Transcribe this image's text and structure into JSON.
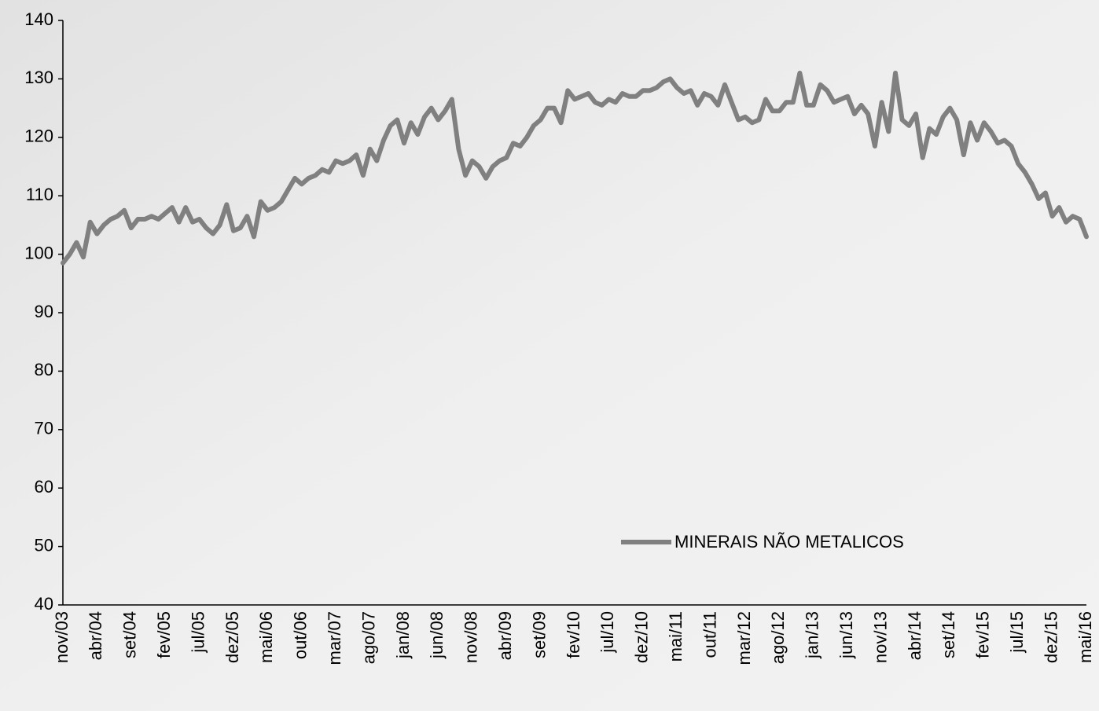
{
  "chart_data": {
    "type": "line",
    "categories": [
      "nov/03",
      null,
      null,
      null,
      null,
      "abr/04",
      null,
      null,
      null,
      null,
      "set/04",
      null,
      null,
      null,
      null,
      "fev/05",
      null,
      null,
      null,
      null,
      "jul/05",
      null,
      null,
      null,
      null,
      "dez/05",
      null,
      null,
      null,
      null,
      "mai/06",
      null,
      null,
      null,
      null,
      "out/06",
      null,
      null,
      null,
      null,
      "mar/07",
      null,
      null,
      null,
      null,
      "ago/07",
      null,
      null,
      null,
      null,
      "jan/08",
      null,
      null,
      null,
      null,
      "jun/08",
      null,
      null,
      null,
      null,
      "nov/08",
      null,
      null,
      null,
      null,
      "abr/09",
      null,
      null,
      null,
      null,
      "set/09",
      null,
      null,
      null,
      null,
      "fev/10",
      null,
      null,
      null,
      null,
      "jul/10",
      null,
      null,
      null,
      null,
      "dez/10",
      null,
      null,
      null,
      null,
      "mai/11",
      null,
      null,
      null,
      null,
      "out/11",
      null,
      null,
      null,
      null,
      "mar/12",
      null,
      null,
      null,
      null,
      "ago/12",
      null,
      null,
      null,
      null,
      "jan/13",
      null,
      null,
      null,
      null,
      "jun/13",
      null,
      null,
      null,
      null,
      "nov/13",
      null,
      null,
      null,
      null,
      "abr/14",
      null,
      null,
      null,
      null,
      "set/14",
      null,
      null,
      null,
      null,
      "fev/15",
      null,
      null,
      null,
      null,
      "jul/15",
      null,
      null,
      null,
      null,
      "dez/15",
      null,
      null,
      null,
      null,
      "mai/16"
    ],
    "series": [
      {
        "name": "MINERAIS NÃO METALICOS",
        "color": "#808080",
        "values": [
          98.5,
          100,
          102,
          99.5,
          105.5,
          103.5,
          105,
          106,
          106.5,
          107.5,
          104.5,
          106,
          106,
          106.5,
          106,
          107,
          108,
          105.5,
          108,
          105.5,
          106,
          104.5,
          103.5,
          105,
          108.5,
          104,
          104.5,
          106.5,
          103,
          109,
          107.5,
          108,
          109,
          111,
          113,
          112,
          113,
          113.5,
          114.5,
          114,
          116,
          115.5,
          116,
          117,
          113.5,
          118,
          116,
          119.5,
          122,
          123,
          119,
          122.5,
          120.5,
          123.5,
          125,
          123,
          124.5,
          126.5,
          118,
          113.5,
          116,
          115,
          113,
          115,
          116,
          116.5,
          119,
          118.5,
          120,
          122,
          123,
          125,
          125,
          122.5,
          128,
          126.5,
          127,
          127.5,
          126,
          125.5,
          126.5,
          126,
          127.5,
          127,
          127,
          128,
          128,
          128.5,
          129.5,
          130,
          128.5,
          127.5,
          128,
          125.5,
          127.5,
          127,
          125.5,
          129,
          126,
          123,
          123.5,
          122.5,
          123,
          126.5,
          124.5,
          124.5,
          126,
          126,
          131,
          125.5,
          125.5,
          129,
          128,
          126,
          126.5,
          127,
          124,
          125.5,
          124,
          118.5,
          126,
          121,
          131,
          123,
          122,
          124,
          116.5,
          121.5,
          120.5,
          123.5,
          125,
          123,
          117,
          122.5,
          119.5,
          122.5,
          121,
          119,
          119.5,
          118.5,
          115.5,
          114,
          112,
          109.5,
          110.5,
          106.5,
          108,
          105.5,
          106.5,
          106,
          103
        ]
      }
    ],
    "ylim": [
      40,
      140
    ],
    "yticks": [
      40,
      50,
      60,
      70,
      80,
      90,
      100,
      110,
      120,
      130,
      140
    ],
    "grid": false,
    "legend": "lower right"
  }
}
